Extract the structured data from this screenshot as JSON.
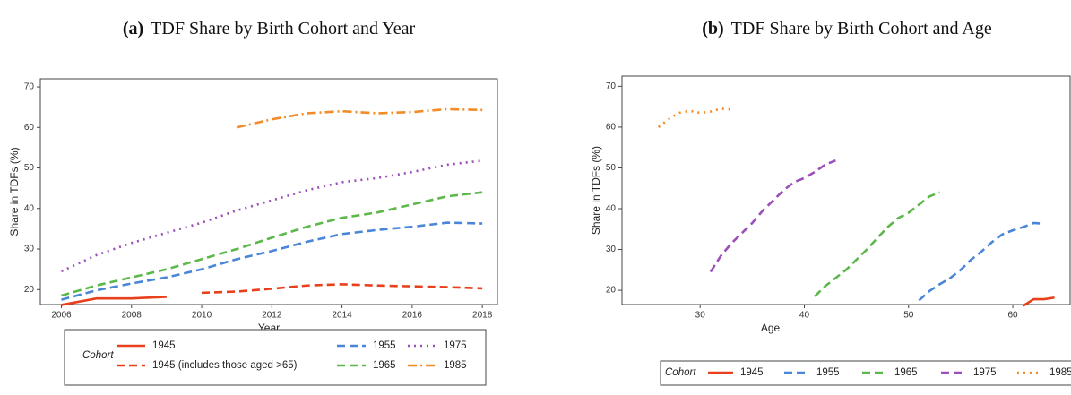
{
  "chart_data": [
    {
      "type": "line",
      "label": "(a)",
      "title": "TDF Share by Birth Cohort and Year",
      "x_label": "Year",
      "y_label": "Share in TDFs (%)",
      "legend_title": "Cohort",
      "xlim": [
        2005.4,
        2018.43
      ],
      "xticks": [
        2006,
        2008,
        2010,
        2012,
        2014,
        2016,
        2018
      ],
      "ylim": [
        16.3,
        72
      ],
      "yticks": [
        20,
        30,
        40,
        50,
        60,
        70
      ],
      "series": [
        {
          "name": "1945",
          "color": "#e8401c",
          "style": "solid",
          "x": [
            2006,
            2007,
            2008,
            2009
          ],
          "values": [
            16.2,
            17.8,
            17.8,
            18.2
          ]
        },
        {
          "name": "1945 (includes those aged >65)",
          "color": "#e8401c",
          "style": "dashed",
          "x": [
            2010,
            2011,
            2012,
            2013,
            2014,
            2015,
            2016,
            2017,
            2018
          ],
          "values": [
            19.2,
            19.5,
            20.2,
            21,
            21.3,
            21,
            20.8,
            20.6,
            20.3
          ]
        },
        {
          "name": "1955",
          "color": "#4a86d8",
          "style": "dashed",
          "x": [
            2006,
            2007,
            2008,
            2009,
            2010,
            2011,
            2012,
            2013,
            2014,
            2015,
            2016,
            2017,
            2018
          ],
          "values": [
            17.5,
            19.8,
            21.5,
            23,
            25,
            27.5,
            29.5,
            31.8,
            33.7,
            34.7,
            35.5,
            36.5,
            36.3
          ]
        },
        {
          "name": "1965",
          "color": "#5cb84a",
          "style": "dashed",
          "x": [
            2006,
            2007,
            2008,
            2009,
            2010,
            2011,
            2012,
            2013,
            2014,
            2015,
            2016,
            2017,
            2018
          ],
          "values": [
            18.5,
            21,
            23,
            25,
            27.5,
            30,
            32.8,
            35.5,
            37.7,
            39,
            41,
            43,
            44
          ]
        },
        {
          "name": "1975",
          "color": "#9b4fb8",
          "style": "dotted",
          "x": [
            2006,
            2007,
            2008,
            2009,
            2010,
            2011,
            2012,
            2013,
            2014,
            2015,
            2016,
            2017,
            2018
          ],
          "values": [
            24.5,
            28.5,
            31.5,
            34,
            36.5,
            39.5,
            42,
            44.5,
            46.5,
            47.5,
            49,
            50.8,
            51.8
          ]
        },
        {
          "name": "1985",
          "color": "#f28c28",
          "style": "dotdash",
          "x": [
            2011,
            2012,
            2013,
            2014,
            2015,
            2016,
            2017,
            2018
          ],
          "values": [
            60,
            62,
            63.5,
            64,
            63.5,
            63.8,
            64.5,
            64.3
          ]
        }
      ]
    },
    {
      "type": "line",
      "label": "(b)",
      "title": "TDF Share by Birth Cohort and Age",
      "x_label": "Age",
      "y_label": "Share in TDFs (%)",
      "legend_title": "Cohort",
      "xlim": [
        22.5,
        65.5
      ],
      "xticks": [
        30,
        40,
        50,
        60
      ],
      "ylim": [
        16.5,
        72.5
      ],
      "yticks": [
        20,
        30,
        40,
        50,
        60,
        70
      ],
      "series": [
        {
          "name": "1945",
          "color": "#e8401c",
          "style": "solid",
          "x": [
            61,
            62,
            63,
            64
          ],
          "values": [
            16.2,
            17.8,
            17.8,
            18.2
          ]
        },
        {
          "name": "1955",
          "color": "#4a86d8",
          "style": "dashed",
          "x": [
            51,
            52,
            53,
            54,
            55,
            56,
            57,
            58,
            59,
            60,
            61,
            62,
            63
          ],
          "values": [
            17.5,
            19.8,
            21.5,
            23,
            25,
            27.5,
            29.5,
            31.8,
            33.7,
            34.7,
            35.5,
            36.5,
            36.3
          ]
        },
        {
          "name": "1965",
          "color": "#5cb84a",
          "style": "dashed",
          "x": [
            41,
            42,
            43,
            44,
            45,
            46,
            47,
            48,
            49,
            50,
            51,
            52,
            53
          ],
          "values": [
            18.5,
            21,
            23,
            25,
            27.5,
            30,
            32.8,
            35.5,
            37.7,
            39,
            41,
            43,
            44
          ]
        },
        {
          "name": "1975",
          "color": "#9b4fb8",
          "style": "dashed",
          "x": [
            31,
            32,
            33,
            34,
            35,
            36,
            37,
            38,
            39,
            40,
            41,
            42,
            43
          ],
          "values": [
            24.5,
            28.5,
            31.5,
            34,
            36.5,
            39.5,
            42,
            44.5,
            46.5,
            47.5,
            49,
            50.8,
            51.8
          ]
        },
        {
          "name": "1985",
          "color": "#f28c28",
          "style": "dotted",
          "x": [
            26,
            27,
            28,
            29,
            30,
            31,
            32,
            33
          ],
          "values": [
            60,
            62,
            63.5,
            64,
            63.5,
            63.8,
            64.5,
            64.3
          ]
        }
      ]
    }
  ]
}
